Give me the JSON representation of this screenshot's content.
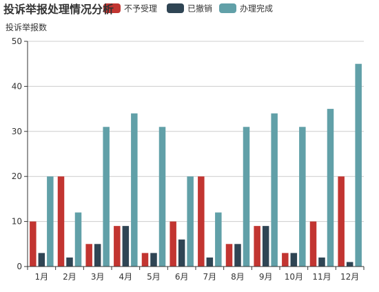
{
  "chart_data": {
    "type": "bar",
    "title": "投诉举报处理情况分析",
    "ylabel": "投诉举报数",
    "xlabel": "",
    "ylim": [
      0,
      50
    ],
    "yticks": [
      0,
      10,
      20,
      30,
      40,
      50
    ],
    "grid": true,
    "legend_position": "top",
    "categories": [
      "1月",
      "2月",
      "3月",
      "4月",
      "5月",
      "6月",
      "7月",
      "8月",
      "9月",
      "10月",
      "11月",
      "12月"
    ],
    "series": [
      {
        "name": "不予受理",
        "color": "#c23531",
        "values": [
          10,
          20,
          5,
          9,
          3,
          10,
          20,
          5,
          9,
          3,
          10,
          20
        ]
      },
      {
        "name": "已撤销",
        "color": "#2f4554",
        "values": [
          3,
          2,
          5,
          9,
          3,
          6,
          2,
          5,
          9,
          3,
          2,
          1
        ]
      },
      {
        "name": "办理完成",
        "color": "#61a0a8",
        "values": [
          20,
          12,
          31,
          34,
          31,
          20,
          12,
          31,
          34,
          31,
          35,
          45
        ]
      }
    ]
  }
}
